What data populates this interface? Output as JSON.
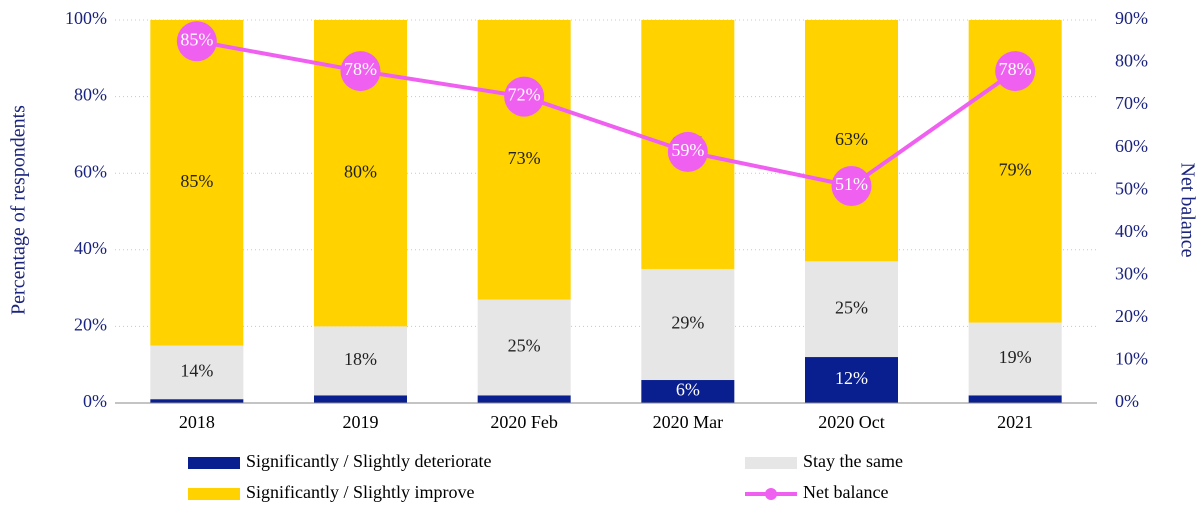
{
  "chart_data": {
    "type": "bar",
    "stacked": true,
    "categories": [
      "2018",
      "2019",
      "2020 Feb",
      "2020 Mar",
      "2020 Oct",
      "2021"
    ],
    "ylabel": "Percentage of respondents",
    "y2label": "Net balance",
    "ylim": [
      0,
      100
    ],
    "yticks": [
      {
        "value": 0,
        "label": "0%"
      },
      {
        "value": 20,
        "label": "20%"
      },
      {
        "value": 40,
        "label": "40%"
      },
      {
        "value": 60,
        "label": "60%"
      },
      {
        "value": 80,
        "label": "80%"
      },
      {
        "value": 100,
        "label": "100%"
      }
    ],
    "y2lim": [
      0,
      90
    ],
    "y2ticks": [
      {
        "value": 0,
        "label": "0%"
      },
      {
        "value": 10,
        "label": "10%"
      },
      {
        "value": 20,
        "label": "20%"
      },
      {
        "value": 30,
        "label": "30%"
      },
      {
        "value": 40,
        "label": "40%"
      },
      {
        "value": 50,
        "label": "50%"
      },
      {
        "value": 60,
        "label": "60%"
      },
      {
        "value": 70,
        "label": "70%"
      },
      {
        "value": 80,
        "label": "80%"
      },
      {
        "value": 90,
        "label": "90%"
      }
    ],
    "grid": true,
    "legend": "bottom",
    "series": [
      {
        "name": "Significantly / Slightly deteriorate",
        "color": "#0a1f8f",
        "values": [
          1,
          2,
          2,
          6,
          12,
          2
        ],
        "value_labels": [
          null,
          null,
          null,
          "6%",
          "12%",
          null
        ]
      },
      {
        "name": "Stay the same",
        "color": "#e6e6e6",
        "values": [
          14,
          18,
          25,
          29,
          25,
          19
        ],
        "value_labels": [
          "14%",
          "18%",
          "25%",
          "29%",
          "25%",
          "19%"
        ]
      },
      {
        "name": "Significantly / Slightly improve",
        "color": "#ffd200",
        "values": [
          85,
          80,
          73,
          65,
          63,
          79
        ],
        "value_labels": [
          "85%",
          "80%",
          "73%",
          "65%",
          "63%",
          "79%"
        ]
      },
      {
        "name": "Net balance",
        "type": "line",
        "axis": "y2",
        "color": "#f060f0",
        "values": [
          85,
          78,
          72,
          59,
          51,
          78
        ],
        "value_labels": [
          "85%",
          "78%",
          "72%",
          "59%",
          "51%",
          "78%"
        ]
      }
    ]
  }
}
